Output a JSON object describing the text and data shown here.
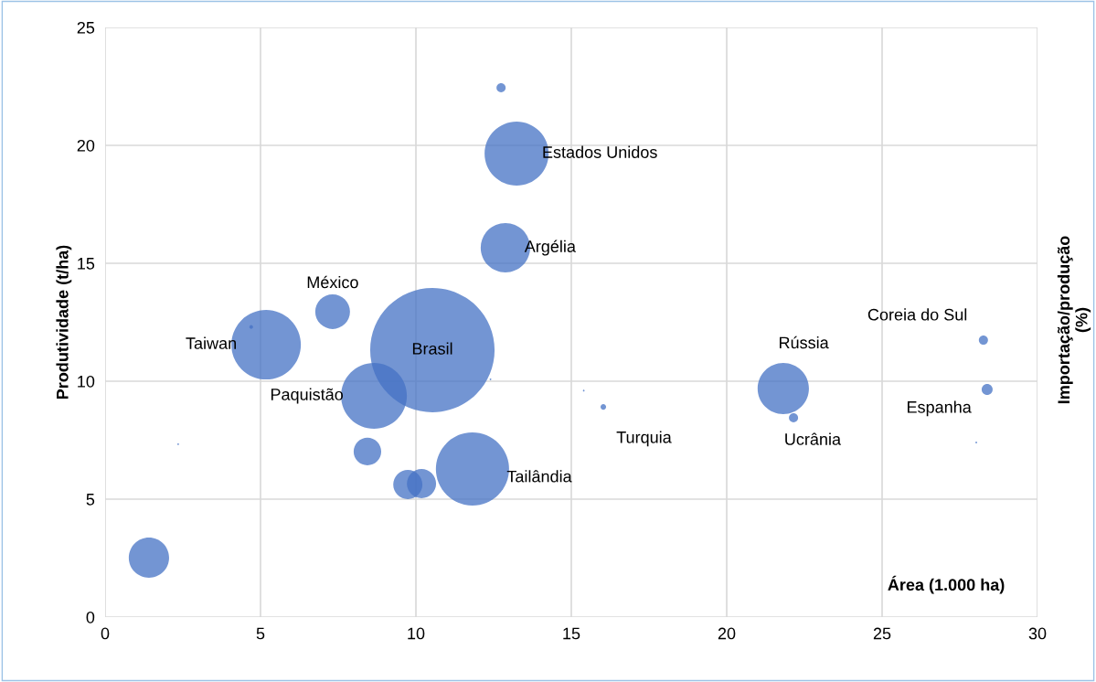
{
  "chart_data": {
    "type": "bubble",
    "x": [
      12.74,
      13.24,
      12.88,
      7.32,
      4.7,
      5.18,
      10.53,
      8.65,
      12.4,
      15.4,
      16.03,
      21.82,
      22.15,
      28.26,
      28.38,
      28.03,
      2.35,
      8.44,
      9.74,
      10.18,
      11.82,
      1.41
    ],
    "series": [
      {
        "color": "#4472c4",
        "values": [
          22.44,
          19.65,
          15.66,
          12.95,
          12.3,
          11.55,
          11.32,
          9.38,
          10.08,
          9.6,
          8.91,
          9.69,
          8.45,
          11.74,
          9.65,
          7.4,
          7.33,
          7.02,
          5.62,
          5.66,
          6.28,
          2.52
        ],
        "sizes": [
          0.0054,
          0.265,
          0.158,
          0.078,
          0.0009,
          0.312,
          1,
          0.28,
          0.0002,
          0.0002,
          0.002,
          0.17,
          0.0054,
          0.0054,
          0.0078,
          0.0002,
          0.0002,
          0.049,
          0.055,
          0.055,
          0.346,
          0.105
        ]
      }
    ],
    "xlabel": "Área (1.000 ha)",
    "ylabel": "Produtividade (t/ha)",
    "xlim": [
      0,
      30
    ],
    "xticks": [
      0,
      5,
      10,
      15,
      20,
      25,
      30
    ],
    "ylim": [
      0,
      25
    ],
    "yticks": [
      0,
      5,
      10,
      15,
      20,
      25
    ],
    "grid": true,
    "legend": false,
    "annotations": [
      {
        "text": "Estados Unidos",
        "x": 13.24,
        "y": 19.65
      },
      {
        "text": "Argélia",
        "x": 12.88,
        "y": 15.66
      },
      {
        "text": "México",
        "x": 7.32,
        "y": 12.95
      },
      {
        "text": "Taiwan",
        "x": 5.18,
        "y": 11.55
      },
      {
        "text": "Brasil",
        "x": 10.53,
        "y": 11.32
      },
      {
        "text": "Paquistão",
        "x": 8.65,
        "y": 9.38
      },
      {
        "text": "Turquia",
        "x": 16.03,
        "y": 8.91
      },
      {
        "text": "Rússia",
        "x": 21.82,
        "y": 9.69
      },
      {
        "text": "Ucrânia",
        "x": 22.15,
        "y": 8.45
      },
      {
        "text": "Coreia do Sul",
        "x": 28.26,
        "y": 11.74
      },
      {
        "text": "Espanha",
        "x": 28.38,
        "y": 9.65
      },
      {
        "text": "Tailândia",
        "x": 11.82,
        "y": 6.28
      },
      "Importação/produção\n(%)"
    ]
  }
}
